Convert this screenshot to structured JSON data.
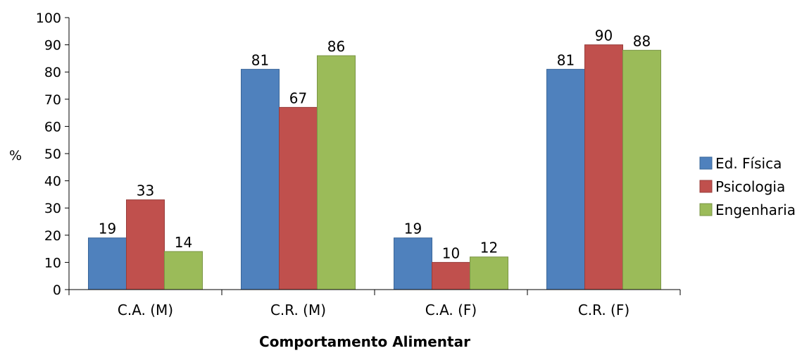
{
  "chart_data": {
    "type": "bar",
    "categories": [
      "C.A. (M)",
      "C.R. (M)",
      "C.A. (F)",
      "C.R. (F)"
    ],
    "series": [
      {
        "name": "Ed. Física",
        "values": [
          19,
          81,
          19,
          81
        ],
        "color": "#4F81BD",
        "stroke": "#3A6699"
      },
      {
        "name": "Psicologia",
        "values": [
          33,
          67,
          10,
          90
        ],
        "color": "#C0504D",
        "stroke": "#983C3A"
      },
      {
        "name": "Engenharia",
        "values": [
          14,
          86,
          12,
          88
        ],
        "color": "#9BBB59",
        "stroke": "#7A9545"
      }
    ],
    "xlabel": "Comportamento Alimentar",
    "ylabel": "%",
    "ylim": [
      0,
      100
    ],
    "yticks": [
      0,
      10,
      20,
      30,
      40,
      50,
      60,
      70,
      80,
      90,
      100
    ],
    "legend_position": "right",
    "grid": false
  }
}
